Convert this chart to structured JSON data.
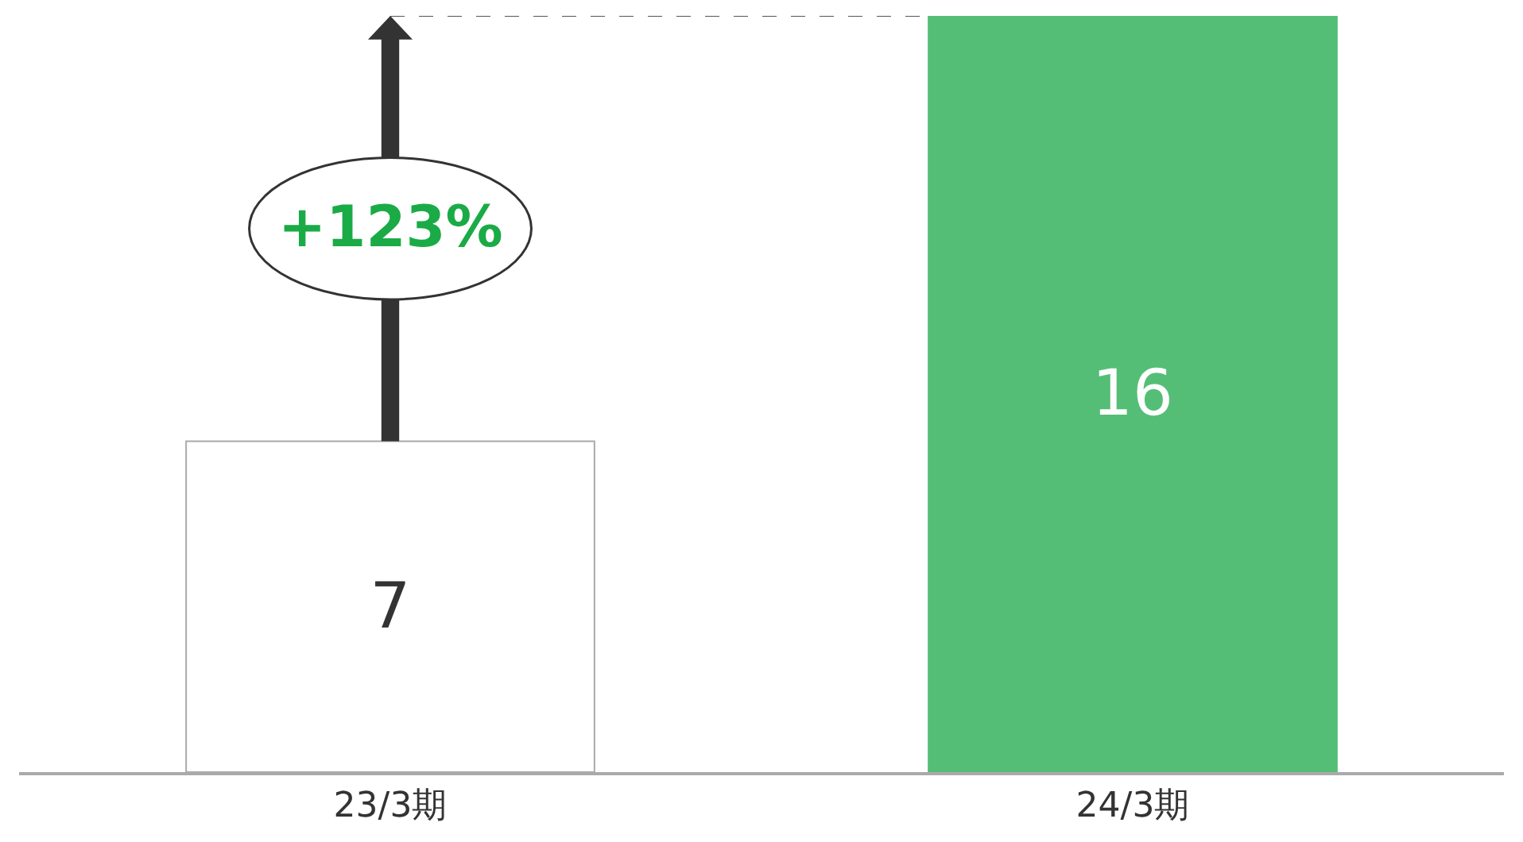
{
  "chart_data": {
    "type": "bar",
    "categories": [
      "23/3期",
      "24/3期"
    ],
    "values": [
      7,
      16
    ],
    "colors": [
      "#ffffff",
      "#55be76"
    ],
    "data_labels": true,
    "annotations": [
      "+123%"
    ],
    "ref_lines": [
      {
        "axis": "y",
        "value": 16,
        "color": "#555555",
        "line_style": "dashed"
      }
    ],
    "legend": false
  }
}
